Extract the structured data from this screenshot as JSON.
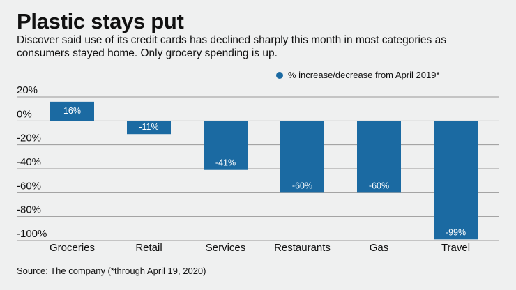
{
  "header": {
    "title": "Plastic stays put",
    "subtitle": "Discover said use of its credit cards has declined sharply this month in most categories as consumers stayed home. Only grocery spending is up."
  },
  "legend": {
    "label": "% increase/decrease from April 2019*",
    "color": "#1b6aa2"
  },
  "source": "Source: The company (*through April 19, 2020)",
  "chart_data": {
    "type": "bar",
    "title": "Plastic stays put",
    "xlabel": "",
    "ylabel": "",
    "categories": [
      "Groceries",
      "Retail",
      "Services",
      "Restaurants",
      "Gas",
      "Travel"
    ],
    "series": [
      {
        "name": "% increase/decrease from April 2019*",
        "values": [
          16,
          -11,
          -41,
          -60,
          -60,
          -99
        ],
        "labels": [
          "16%",
          "-11%",
          "-41%",
          "-60%",
          "-60%",
          "-99%"
        ]
      }
    ],
    "ylim": [
      -100,
      20
    ],
    "yticks": [
      20,
      0,
      -20,
      -40,
      -60,
      -80,
      -100
    ],
    "ytick_labels": [
      "20%",
      "0%",
      "-20%",
      "-40%",
      "-60%",
      "-80%",
      "-100%"
    ],
    "grid": true,
    "legend_position": "top-right",
    "bar_color": "#1b6aa2",
    "grid_color": "#999999"
  }
}
